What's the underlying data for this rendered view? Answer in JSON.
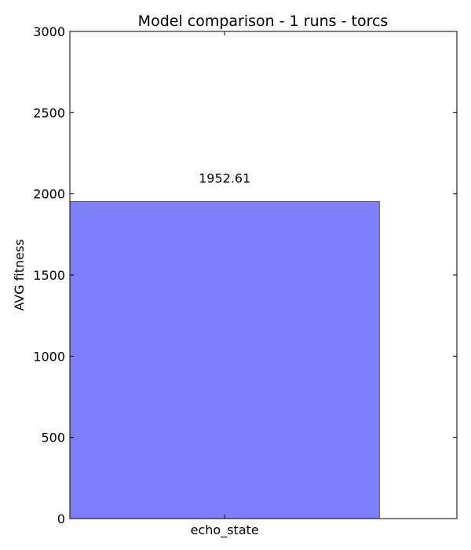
{
  "chart_data": {
    "type": "bar",
    "title": "Model comparison - 1 runs - torcs",
    "xlabel": "",
    "ylabel": "AVG fitness",
    "categories": [
      "echo_state"
    ],
    "values": [
      1952.61
    ],
    "data_labels": [
      "1952.61"
    ],
    "ylim": [
      0,
      3000
    ],
    "yticks": [
      0,
      500,
      1000,
      1500,
      2000,
      2500,
      3000
    ],
    "grid": false,
    "bar_color": "#8080ff",
    "bar_edge_color": "#555566"
  }
}
